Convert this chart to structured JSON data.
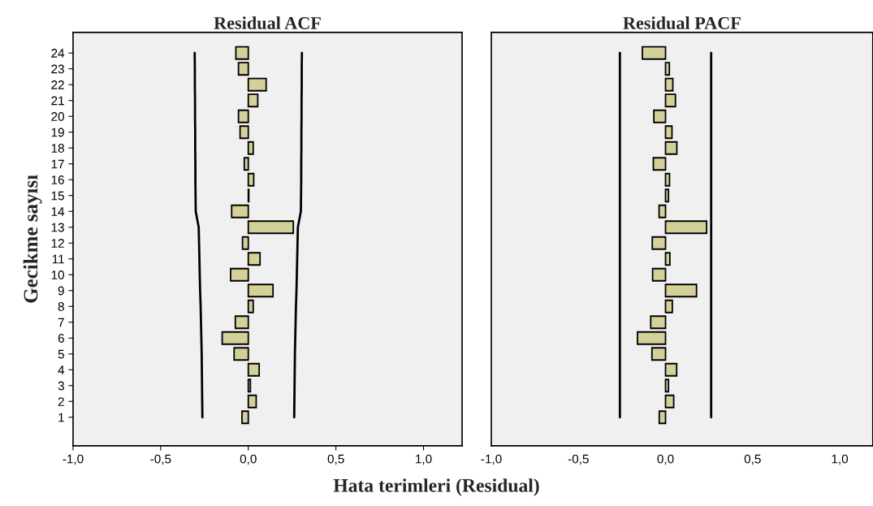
{
  "chart_data": [
    {
      "type": "bar",
      "orientation": "horizontal",
      "title": "Residual ACF",
      "ylabel": "Gecikme sayısı",
      "xlabel": "Hata terimleri (Residual)",
      "categories": [
        "24",
        "23",
        "22",
        "21",
        "20",
        "19",
        "18",
        "17",
        "16",
        "15",
        "14",
        "13",
        "12",
        "11",
        "10",
        "9",
        "8",
        "7",
        "6",
        "5",
        "4",
        "3",
        "2",
        "1"
      ],
      "series": [
        {
          "color": "#d4d09a",
          "values": [
            -0.071,
            -0.056,
            0.102,
            0.054,
            -0.056,
            -0.047,
            0.028,
            -0.023,
            0.031,
            0.003,
            -0.095,
            0.257,
            -0.033,
            0.067,
            -0.101,
            0.141,
            0.028,
            -0.074,
            -0.149,
            -0.081,
            0.062,
            0.012,
            0.045,
            -0.036
          ]
        },
        {
          "type": "line",
          "color": "#000000",
          "values": [
            -0.306,
            -0.305,
            -0.305,
            -0.304,
            -0.304,
            -0.303,
            -0.303,
            -0.302,
            -0.302,
            -0.301,
            -0.3,
            -0.283,
            -0.281,
            -0.279,
            -0.277,
            -0.275,
            -0.272,
            -0.27,
            -0.268,
            -0.266,
            -0.265,
            -0.264,
            -0.263,
            -0.262
          ]
        },
        {
          "type": "line",
          "color": "#000000",
          "values": [
            0.306,
            0.305,
            0.305,
            0.304,
            0.304,
            0.303,
            0.303,
            0.302,
            0.302,
            0.301,
            0.3,
            0.283,
            0.281,
            0.279,
            0.277,
            0.275,
            0.272,
            0.27,
            0.268,
            0.266,
            0.265,
            0.264,
            0.263,
            0.262
          ]
        }
      ],
      "xlim": [
        -1.0,
        1.22
      ],
      "xticks": [
        {
          "value": -1.0,
          "label": "-1,0"
        },
        {
          "value": -0.5,
          "label": "-0,5"
        },
        {
          "value": 0.0,
          "label": "0,0"
        },
        {
          "value": 0.5,
          "label": "0,5"
        },
        {
          "value": 1.0,
          "label": "1,0"
        }
      ]
    },
    {
      "type": "bar",
      "orientation": "horizontal",
      "title": "Residual PACF",
      "tick_labels": "x",
      "categories": [
        "24",
        "23",
        "22",
        "21",
        "20",
        "19",
        "18",
        "17",
        "16",
        "15",
        "14",
        "13",
        "12",
        "11",
        "10",
        "9",
        "8",
        "7",
        "6",
        "5",
        "4",
        "3",
        "2",
        "1"
      ],
      "series": [
        {
          "color": "#d4d09a",
          "values": [
            -0.133,
            0.022,
            0.042,
            0.057,
            -0.067,
            0.037,
            0.065,
            -0.07,
            0.023,
            0.017,
            -0.037,
            0.236,
            -0.076,
            0.025,
            -0.074,
            0.178,
            0.039,
            -0.085,
            -0.161,
            -0.078,
            0.064,
            0.017,
            0.047,
            -0.036
          ]
        },
        {
          "type": "line",
          "color": "#000000",
          "values": [
            -0.262,
            -0.262,
            -0.262,
            -0.262,
            -0.262,
            -0.262,
            -0.262,
            -0.262,
            -0.262,
            -0.262,
            -0.262,
            -0.262,
            -0.262,
            -0.262,
            -0.262,
            -0.262,
            -0.262,
            -0.262,
            -0.262,
            -0.262,
            -0.262,
            -0.262,
            -0.262,
            -0.262
          ]
        },
        {
          "type": "line",
          "color": "#000000",
          "values": [
            0.262,
            0.262,
            0.262,
            0.262,
            0.262,
            0.262,
            0.262,
            0.262,
            0.262,
            0.262,
            0.262,
            0.262,
            0.262,
            0.262,
            0.262,
            0.262,
            0.262,
            0.262,
            0.262,
            0.262,
            0.262,
            0.262,
            0.262,
            0.262
          ]
        }
      ],
      "xlim": [
        -1.0,
        1.19
      ],
      "xticks": [
        {
          "value": -1.0,
          "label": "-1,0"
        },
        {
          "value": -0.5,
          "label": "-0,5"
        },
        {
          "value": 0.0,
          "label": "0,0"
        },
        {
          "value": 0.5,
          "label": "0,5"
        },
        {
          "value": 1.0,
          "label": "1,0"
        }
      ]
    }
  ]
}
